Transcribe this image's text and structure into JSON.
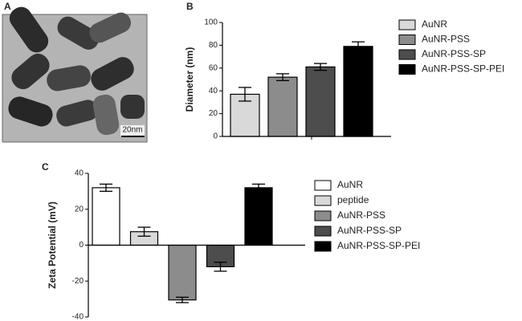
{
  "image_panel": {
    "label": "A",
    "scale_bar": "20nm"
  },
  "chart_data": [
    {
      "type": "bar",
      "panel_label": "B",
      "y_label": "Diameter (nm)",
      "categories": [
        "AuNR",
        "AuNR-PSS",
        "AuNR-PSS-SP",
        "AuNR-PSS-SP-PEI"
      ],
      "values": [
        37,
        52,
        61,
        79
      ],
      "errors": [
        6,
        3,
        3,
        4
      ],
      "colors": [
        "#d9d9d9",
        "#8c8c8c",
        "#4d4d4d",
        "#000000"
      ],
      "ylim": [
        0,
        100
      ],
      "yticks": [
        0,
        20,
        40,
        60,
        80,
        100
      ],
      "legend": "right"
    },
    {
      "type": "bar",
      "panel_label": "C",
      "y_label": "Zeta Potential (mV)",
      "categories": [
        "AuNR",
        "peptide",
        "AuNR-PSS",
        "AuNR-PSS-SP",
        "AuNR-PSS-SP-PEI"
      ],
      "values": [
        32,
        7.5,
        -30.5,
        -12,
        32
      ],
      "errors": [
        2,
        2.5,
        1.5,
        2.5,
        2
      ],
      "colors": [
        "#ffffff",
        "#d9d9d9",
        "#8c8c8c",
        "#4d4d4d",
        "#000000"
      ],
      "ylim": [
        -40,
        40
      ],
      "yticks": [
        -40,
        -20,
        0,
        20,
        40
      ],
      "legend": "right"
    }
  ]
}
